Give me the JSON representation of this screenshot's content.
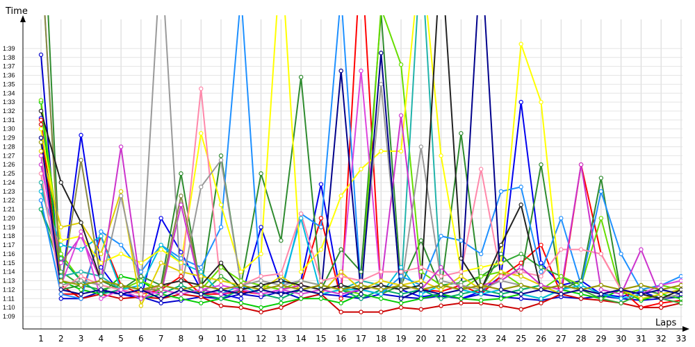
{
  "chart_data": {
    "type": "line",
    "title": "",
    "xlabel": "Laps",
    "ylabel": "Time",
    "grid": true,
    "xlim": [
      1,
      33
    ],
    "ylim_seconds": [
      68,
      100
    ],
    "x": [
      1,
      2,
      3,
      4,
      5,
      6,
      7,
      8,
      9,
      10,
      11,
      12,
      13,
      14,
      15,
      16,
      17,
      18,
      19,
      20,
      21,
      22,
      23,
      24,
      25,
      26,
      27,
      28,
      29,
      30,
      31,
      32,
      33
    ],
    "x_tick_labels": [
      "1",
      "2",
      "3",
      "4",
      "5",
      "6",
      "7",
      "8",
      "9",
      "10",
      "11",
      "12",
      "13",
      "14",
      "15",
      "16",
      "17",
      "18",
      "19",
      "20",
      "21",
      "22",
      "23",
      "24",
      "25",
      "26",
      "27",
      "28",
      "29",
      "30",
      "31",
      "32",
      "33"
    ],
    "y_tick_labels": [
      "1:09",
      "1:10",
      "1:11",
      "1:12",
      "1:13",
      "1:14",
      "1:15",
      "1:16",
      "1:17",
      "1:18",
      "1:19",
      "1:20",
      "1:21",
      "1:22",
      "1:23",
      "1:24",
      "1:25",
      "1:26",
      "1:27",
      "1:28",
      "1:29",
      "1:30",
      "1:31",
      "1:32",
      "1:33",
      "1:34",
      "1:35",
      "1:36",
      "1:37",
      "1:38",
      "1:39"
    ],
    "y_unit": "lap time (m:ss)",
    "series": [
      {
        "color": "#0000cc",
        "values": [
          98.3,
          71.0,
          71.0,
          71.8,
          71.5,
          71.2,
          70.5,
          70.8,
          71.2,
          71.0,
          71.5,
          71.2,
          71.8,
          71.0,
          71.5,
          71.3,
          71.0,
          71.5,
          71.2,
          71.0,
          71.3,
          71.0,
          71.5,
          71.2,
          71.0,
          70.8,
          71.2,
          71.0,
          71.3,
          71.0,
          70.8,
          71.0,
          71.2
        ]
      },
      {
        "color": "#0000ee",
        "values": [
          91.2,
          72.0,
          89.3,
          74.5,
          71.5,
          71.0,
          80.0,
          76.2,
          72.0,
          71.5,
          71.0,
          79.0,
          72.5,
          73.0,
          83.8,
          71.2,
          72.0,
          72.5,
          72.0,
          71.2,
          71.5,
          71.0,
          71.8,
          73.5,
          93.0,
          75.0,
          72.5,
          73.0,
          71.5,
          71.2,
          71.8,
          71.0,
          71.5
        ]
      },
      {
        "color": "#ff0000",
        "values": [
          91.0,
          71.5,
          71.5,
          78.0,
          72.5,
          71.5,
          72.0,
          73.5,
          71.5,
          71.5,
          71.8,
          71.5,
          72.0,
          72.5,
          80.0,
          71.0,
          110.0,
          71.5,
          72.5,
          72.0,
          71.8,
          72.5,
          71.5,
          73.5,
          75.0,
          77.0,
          71.5,
          86.0,
          76.0,
          72.0,
          70.0,
          70.5,
          70.8
        ]
      },
      {
        "color": "#cc0000",
        "values": [
          90.5,
          72.5,
          71.0,
          71.5,
          71.0,
          71.2,
          71.0,
          71.5,
          71.2,
          70.2,
          70.0,
          69.5,
          70.0,
          71.0,
          71.5,
          69.5,
          69.5,
          69.5,
          70.0,
          69.8,
          70.2,
          70.5,
          70.5,
          70.2,
          69.8,
          70.5,
          71.5,
          71.0,
          70.8,
          70.5,
          70.0,
          70.0,
          70.5
        ]
      },
      {
        "color": "#00cc00",
        "values": [
          93.0,
          73.0,
          72.0,
          71.5,
          73.5,
          73.0,
          71.5,
          71.0,
          70.5,
          71.0,
          70.5,
          70.0,
          70.5,
          71.0,
          71.0,
          70.5,
          71.5,
          71.0,
          70.5,
          71.0,
          71.5,
          71.0,
          70.8,
          71.0,
          71.5,
          71.0,
          72.0,
          71.5,
          71.0,
          72.0,
          70.8,
          71.5,
          71.0
        ]
      },
      {
        "color": "#33aa33",
        "values": [
          81.0,
          74.0,
          72.5,
          72.0,
          72.5,
          72.0,
          72.5,
          72.0,
          71.5,
          73.5,
          72.0,
          72.5,
          72.0,
          71.5,
          72.0,
          72.5,
          72.0,
          71.5,
          72.5,
          72.0,
          72.5,
          72.8,
          73.5,
          75.0,
          76.0,
          74.5,
          73.5,
          72.0,
          71.0,
          70.5,
          71.5,
          71.0,
          70.5
        ]
      },
      {
        "color": "#2e8b2e",
        "values": [
          120.0,
          72.0,
          72.5,
          73.0,
          72.0,
          73.5,
          72.5,
          85.0,
          72.0,
          87.0,
          72.5,
          85.0,
          77.5,
          95.8,
          72.0,
          76.5,
          74.0,
          103.0,
          72.5,
          77.5,
          72.0,
          89.5,
          72.0,
          76.0,
          73.5,
          86.0,
          72.0,
          73.0,
          84.5,
          71.5,
          72.0,
          71.5,
          72.0
        ]
      },
      {
        "color": "#66dd00",
        "values": [
          93.2,
          76.0,
          73.0,
          72.5,
          72.0,
          73.0,
          72.0,
          71.5,
          72.0,
          74.5,
          73.0,
          72.5,
          72.0,
          73.0,
          72.5,
          72.0,
          71.5,
          103.5,
          97.2,
          74.0,
          72.5,
          72.0,
          73.5,
          74.0,
          72.5,
          72.0,
          73.5,
          72.5,
          80.0,
          71.5,
          72.0,
          72.5,
          72.0
        ]
      },
      {
        "color": "#00aa66",
        "values": [
          81.0,
          75.5,
          73.0,
          71.5,
          72.0,
          71.0,
          71.5,
          72.5,
          71.5,
          71.0,
          72.0,
          71.5,
          71.0,
          72.0,
          71.5,
          72.0,
          71.0,
          72.0,
          71.5,
          72.0,
          71.0,
          71.5,
          72.0,
          71.5,
          72.0,
          72.5,
          71.5,
          72.0,
          71.5,
          72.0,
          71.5,
          71.0,
          71.5
        ]
      },
      {
        "color": "#1e90ff",
        "values": [
          82.0,
          71.5,
          71.0,
          78.5,
          77.0,
          74.0,
          77.0,
          75.5,
          74.5,
          79.0,
          105.0,
          72.0,
          71.5,
          80.5,
          79.0,
          105.0,
          72.0,
          71.5,
          73.5,
          72.5,
          78.0,
          77.5,
          76.0,
          83.0,
          83.5,
          74.0,
          80.0,
          72.5,
          83.0,
          76.0,
          72.0,
          72.5,
          73.5
        ]
      },
      {
        "color": "#00bbdd",
        "values": [
          83.0,
          77.0,
          76.5,
          78.0,
          72.0,
          72.5,
          77.0,
          75.0,
          74.0,
          71.5,
          72.5,
          71.5,
          72.0,
          80.0,
          71.5,
          72.0,
          72.0,
          71.5,
          74.5,
          71.5,
          72.5,
          72.0,
          71.5,
          72.0,
          71.5,
          71.0,
          72.0,
          72.5,
          71.5,
          71.0,
          71.5,
          72.0,
          71.5
        ]
      },
      {
        "color": "#20b2aa",
        "values": [
          84.0,
          73.5,
          74.0,
          73.5,
          72.0,
          71.5,
          72.5,
          72.0,
          71.5,
          72.0,
          72.5,
          72.0,
          71.5,
          72.0,
          72.5,
          72.0,
          73.0,
          72.5,
          72.0,
          110.0,
          72.5,
          72.0,
          72.5,
          72.0,
          72.5,
          72.0,
          72.5,
          72.0,
          71.5,
          72.0,
          71.5,
          71.0,
          71.5
        ]
      },
      {
        "color": "#ffff00",
        "values": [
          90.0,
          77.5,
          78.0,
          75.0,
          76.0,
          75.0,
          76.5,
          75.0,
          89.5,
          81.5,
          74.0,
          76.0,
          110.0,
          74.0,
          76.5,
          82.5,
          85.5,
          87.5,
          87.5,
          110.0,
          87.0,
          74.0,
          74.5,
          75.0,
          99.5,
          93.0,
          71.5,
          72.0,
          71.5,
          72.0,
          71.5,
          71.0,
          72.0
        ]
      },
      {
        "color": "#e0d000",
        "values": [
          87.5,
          79.0,
          79.5,
          76.0,
          83.0,
          70.2,
          75.0,
          74.0,
          73.5,
          73.0,
          72.5,
          72.0,
          73.5,
          72.0,
          71.5,
          74.0,
          72.0,
          73.0,
          72.5,
          73.0,
          72.0,
          73.5,
          72.0,
          74.0,
          73.5,
          72.5,
          71.5,
          72.0,
          71.5,
          72.0,
          71.0,
          71.5,
          72.0
        ]
      },
      {
        "color": "#ff88aa",
        "values": [
          85.0,
          72.0,
          73.5,
          72.5,
          72.0,
          71.5,
          72.5,
          73.0,
          94.5,
          72.0,
          72.5,
          73.5,
          73.8,
          80.5,
          73.0,
          73.5,
          73.0,
          74.0,
          74.0,
          74.5,
          73.5,
          74.0,
          85.5,
          73.5,
          74.0,
          73.5,
          76.5,
          76.5,
          76.0,
          72.0,
          71.5,
          72.0,
          72.5
        ]
      },
      {
        "color": "#cc33cc",
        "values": [
          86.0,
          75.0,
          78.0,
          73.0,
          88.0,
          72.0,
          71.5,
          81.5,
          72.0,
          71.5,
          72.0,
          71.5,
          72.0,
          72.5,
          72.0,
          71.5,
          72.0,
          72.5,
          91.5,
          72.0,
          74.5,
          72.0,
          72.5,
          73.0,
          74.5,
          72.5,
          72.0,
          86.0,
          72.0,
          71.5,
          76.5,
          71.0,
          71.5
        ]
      },
      {
        "color": "#dd44dd",
        "values": [
          87.0,
          72.5,
          78.5,
          71.0,
          72.0,
          71.0,
          72.0,
          71.5,
          72.0,
          72.5,
          72.0,
          71.5,
          72.0,
          71.5,
          72.0,
          72.5,
          96.5,
          72.0,
          72.5,
          72.0,
          72.5,
          72.0,
          72.5,
          72.0,
          71.5,
          72.0,
          72.5,
          72.0,
          71.5,
          72.0,
          71.5,
          72.5,
          73.0
        ]
      },
      {
        "color": "#999999",
        "values": [
          110.0,
          72.5,
          73.0,
          72.5,
          82.5,
          72.0,
          110.0,
          72.0,
          83.5,
          86.5,
          72.5,
          73.0,
          72.5,
          73.0,
          72.5,
          72.0,
          72.5,
          95.0,
          72.0,
          88.0,
          73.0,
          72.5,
          72.0,
          73.0,
          72.5,
          72.0,
          71.5,
          72.0,
          71.5,
          72.0,
          71.5,
          71.0,
          71.5
        ]
      },
      {
        "color": "#888844",
        "values": [
          110.0,
          72.0,
          86.5,
          73.0,
          72.5,
          72.0,
          72.0,
          82.5,
          72.5,
          72.0,
          71.5,
          72.0,
          72.5,
          72.0,
          72.5,
          72.0,
          72.5,
          72.0,
          72.5,
          72.0,
          72.5,
          72.0,
          72.5,
          72.0,
          72.5,
          72.0,
          72.5,
          72.0,
          72.5,
          72.0,
          72.5,
          72.0,
          72.5
        ]
      },
      {
        "color": "#222222",
        "values": [
          92.0,
          84.0,
          79.5,
          73.0,
          72.5,
          72.0,
          72.5,
          73.0,
          72.5,
          75.0,
          72.0,
          72.5,
          73.0,
          72.5,
          72.0,
          72.5,
          72.0,
          72.5,
          72.0,
          72.5,
          110.0,
          75.5,
          72.0,
          77.0,
          81.5,
          72.0,
          72.5,
          72.0,
          71.5,
          72.0,
          71.5,
          71.0,
          72.0
        ]
      },
      {
        "color": "#999900",
        "values": [
          88.5,
          73.0,
          72.5,
          73.0,
          72.5,
          72.0,
          72.5,
          72.0,
          72.5,
          72.0,
          72.5,
          72.0,
          72.5,
          72.0,
          72.5,
          72.0,
          72.5,
          72.0,
          72.5,
          72.0,
          72.5,
          72.0,
          72.5,
          72.0,
          72.5,
          72.0,
          72.5,
          72.0,
          72.5,
          72.0,
          72.5,
          72.0,
          72.5
        ]
      },
      {
        "color": "#00008b",
        "values": [
          89.0,
          72.0,
          71.5,
          72.0,
          71.5,
          72.0,
          71.0,
          72.0,
          71.5,
          72.0,
          71.5,
          72.0,
          71.5,
          72.0,
          71.5,
          96.5,
          71.5,
          98.5,
          71.0,
          72.0,
          71.5,
          72.0,
          110.0,
          72.0,
          71.5,
          72.0,
          71.5,
          72.0,
          71.5,
          72.0,
          71.5,
          72.0,
          71.5
        ]
      }
    ]
  }
}
